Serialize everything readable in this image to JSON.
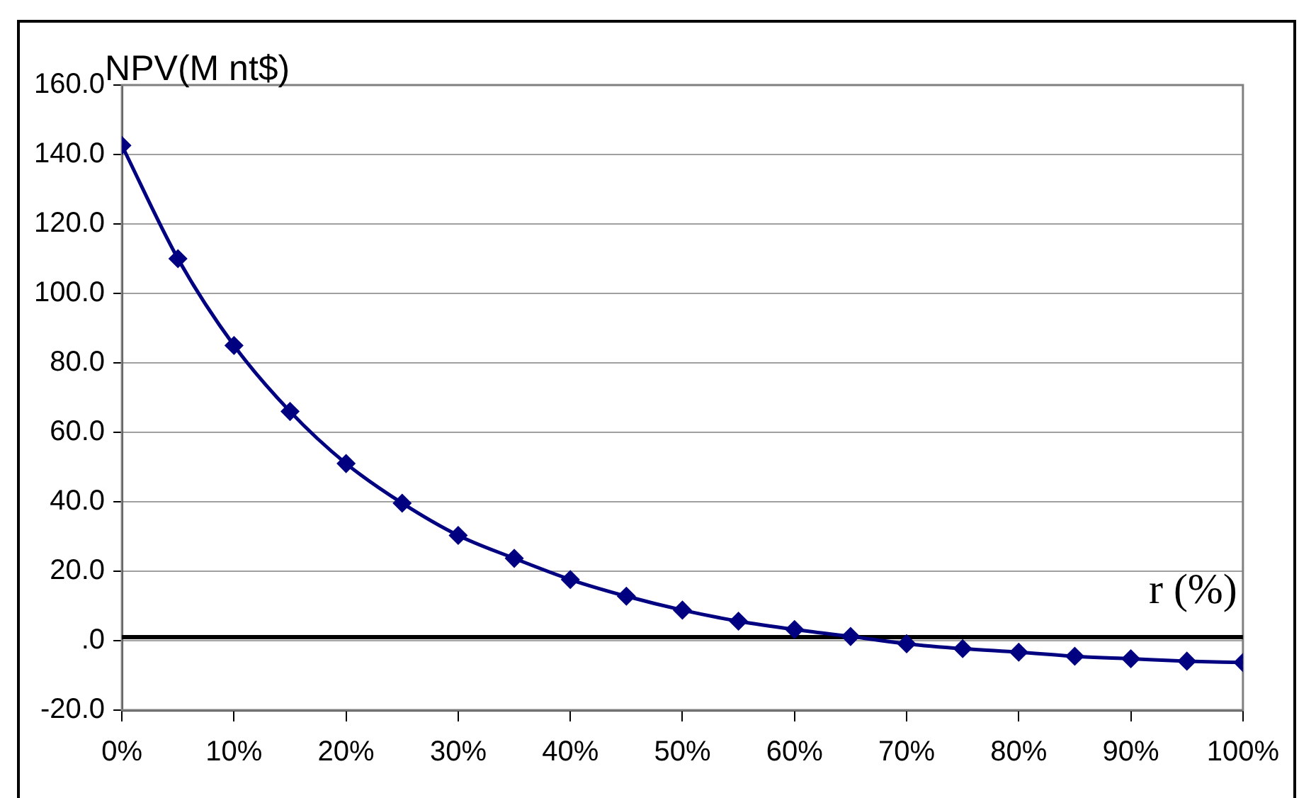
{
  "chart_data": {
    "type": "line",
    "ylabel": "NPV(M nt$)",
    "xlabel": "r (%)",
    "x": [
      0,
      5,
      10,
      15,
      20,
      25,
      30,
      35,
      40,
      45,
      50,
      55,
      60,
      65,
      70,
      75,
      80,
      85,
      90,
      95,
      100
    ],
    "series": [
      {
        "color": "#000080",
        "values": [
          142.6,
          110,
          85,
          66,
          51,
          39.6,
          30.3,
          23.7,
          17.6,
          12.8,
          8.8,
          5.6,
          3.2,
          1.2,
          -0.9,
          -2.3,
          -3.3,
          -4.5,
          -5.2,
          -5.9,
          -6.3
        ]
      }
    ],
    "xlim": [
      0,
      100
    ],
    "xticks": [
      {
        "value": 0,
        "label": "0%"
      },
      {
        "value": 10,
        "label": "10%"
      },
      {
        "value": 20,
        "label": "20%"
      },
      {
        "value": 30,
        "label": "30%"
      },
      {
        "value": 40,
        "label": "40%"
      },
      {
        "value": 50,
        "label": "50%"
      },
      {
        "value": 60,
        "label": "60%"
      },
      {
        "value": 70,
        "label": "70%"
      },
      {
        "value": 80,
        "label": "80%"
      },
      {
        "value": 90,
        "label": "90%"
      },
      {
        "value": 100,
        "label": "100%"
      }
    ],
    "ylim": [
      -20,
      160
    ],
    "yticks": [
      {
        "value": -20,
        "label": "-20.0"
      },
      {
        "value": 0,
        "label": ".0"
      },
      {
        "value": 20,
        "label": "20.0"
      },
      {
        "value": 40,
        "label": "40.0"
      },
      {
        "value": 60,
        "label": "60.0"
      },
      {
        "value": 80,
        "label": "80.0"
      },
      {
        "value": 100,
        "label": "100.0"
      },
      {
        "value": 120,
        "label": "120.0"
      },
      {
        "value": 140,
        "label": "140.0"
      },
      {
        "value": 160,
        "label": "160.0"
      }
    ],
    "ref_lines": [
      {
        "axis": "y",
        "value": 1,
        "color": "#000000"
      }
    ],
    "grid": "y",
    "marker": "diamond",
    "line_style": "solid",
    "legend": false
  }
}
